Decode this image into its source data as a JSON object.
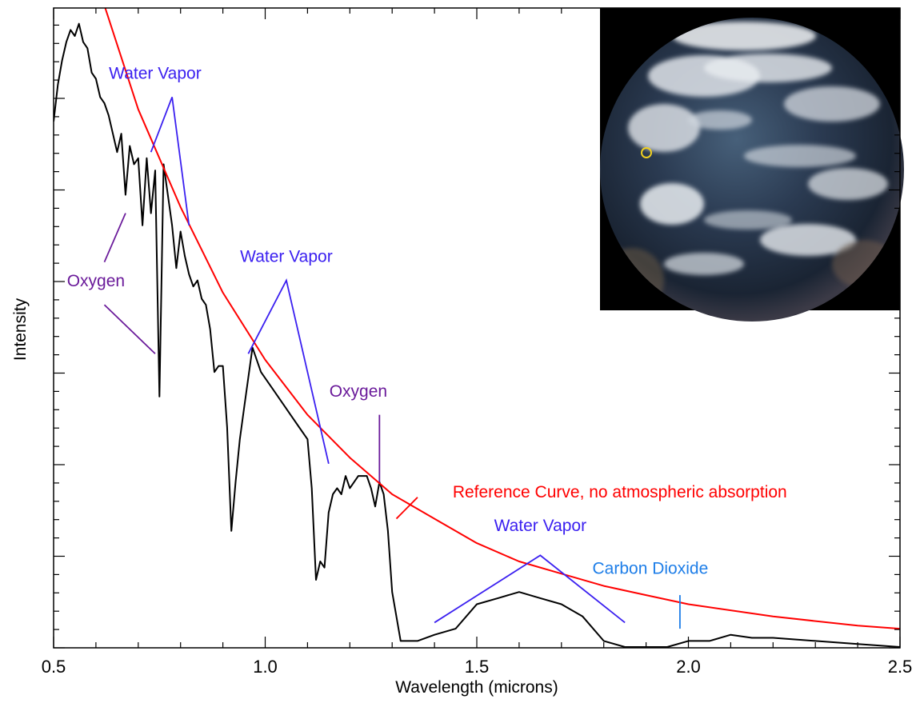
{
  "chart_data": {
    "type": "line",
    "title": "",
    "xlabel": "Wavelength (microns)",
    "ylabel": "Intensity",
    "xlim": [
      0.5,
      2.5
    ],
    "ylim": [
      0,
      1
    ],
    "x_tick_labels": [
      "0.5",
      "1.0",
      "1.5",
      "2.0",
      "2.5"
    ],
    "x_ticks": [
      0.5,
      1.0,
      1.5,
      2.0,
      2.5
    ],
    "y_tick_labels_shown": false,
    "grid": false,
    "colors": {
      "spectrum": "#000000",
      "reference": "#ff0000",
      "water_vapor": "#3a1ff0",
      "oxygen": "#6a1a9a",
      "carbon_dioxide": "#1e7ee8"
    },
    "series": [
      {
        "name": "",
        "color": "#000000",
        "x": [
          0.5,
          0.51,
          0.52,
          0.53,
          0.54,
          0.55,
          0.56,
          0.57,
          0.58,
          0.59,
          0.6,
          0.61,
          0.62,
          0.63,
          0.64,
          0.65,
          0.66,
          0.67,
          0.68,
          0.69,
          0.7,
          0.71,
          0.72,
          0.73,
          0.74,
          0.75,
          0.76,
          0.77,
          0.78,
          0.79,
          0.8,
          0.81,
          0.82,
          0.83,
          0.84,
          0.85,
          0.86,
          0.87,
          0.88,
          0.89,
          0.9,
          0.91,
          0.92,
          0.93,
          0.94,
          0.95,
          0.96,
          0.97,
          0.98,
          0.99,
          1.0,
          1.02,
          1.04,
          1.06,
          1.08,
          1.1,
          1.11,
          1.12,
          1.13,
          1.14,
          1.15,
          1.16,
          1.17,
          1.18,
          1.19,
          1.2,
          1.22,
          1.24,
          1.25,
          1.26,
          1.27,
          1.28,
          1.29,
          1.3,
          1.32,
          1.34,
          1.36,
          1.4,
          1.45,
          1.5,
          1.55,
          1.6,
          1.65,
          1.7,
          1.75,
          1.8,
          1.85,
          1.9,
          1.95,
          2.0,
          2.05,
          2.1,
          2.15,
          2.2,
          2.3,
          2.4,
          2.5
        ],
        "values": [
          0.86,
          0.92,
          0.96,
          0.99,
          1.01,
          1.0,
          1.02,
          0.99,
          0.98,
          0.94,
          0.93,
          0.9,
          0.89,
          0.87,
          0.84,
          0.81,
          0.84,
          0.74,
          0.82,
          0.79,
          0.8,
          0.69,
          0.8,
          0.71,
          0.78,
          0.41,
          0.79,
          0.74,
          0.69,
          0.62,
          0.68,
          0.64,
          0.61,
          0.59,
          0.6,
          0.57,
          0.56,
          0.52,
          0.45,
          0.46,
          0.46,
          0.36,
          0.19,
          0.27,
          0.34,
          0.39,
          0.44,
          0.49,
          0.47,
          0.45,
          0.44,
          0.42,
          0.4,
          0.38,
          0.36,
          0.34,
          0.26,
          0.11,
          0.14,
          0.13,
          0.22,
          0.25,
          0.26,
          0.25,
          0.28,
          0.26,
          0.28,
          0.28,
          0.26,
          0.23,
          0.27,
          0.25,
          0.19,
          0.09,
          0.01,
          0.01,
          0.01,
          0.02,
          0.03,
          0.07,
          0.08,
          0.09,
          0.08,
          0.07,
          0.05,
          0.01,
          0.0,
          0.0,
          0.0,
          0.01,
          0.01,
          0.02,
          0.015,
          0.015,
          0.01,
          0.005,
          0.0
        ]
      },
      {
        "name": "Reference Curve, no atmospheric absorption",
        "color": "#ff0000",
        "x": [
          0.62,
          0.7,
          0.8,
          0.9,
          1.0,
          1.1,
          1.2,
          1.3,
          1.4,
          1.5,
          1.6,
          1.7,
          1.8,
          1.9,
          2.0,
          2.2,
          2.4,
          2.5
        ],
        "values": [
          1.05,
          0.88,
          0.72,
          0.58,
          0.47,
          0.38,
          0.31,
          0.25,
          0.21,
          0.17,
          0.14,
          0.12,
          0.1,
          0.085,
          0.07,
          0.05,
          0.035,
          0.03
        ]
      }
    ],
    "annotations": [
      {
        "text": "Water Vapor",
        "color": "#3a1ff0",
        "label_x": 0.74,
        "label_y": 0.93,
        "targets": [
          [
            0.73,
            0.81
          ],
          [
            0.82,
            0.69
          ]
        ],
        "apex": [
          0.78,
          0.9
        ]
      },
      {
        "text": "Water Vapor",
        "color": "#3a1ff0",
        "label_x": 1.05,
        "label_y": 0.63,
        "targets": [
          [
            0.96,
            0.48
          ],
          [
            1.15,
            0.3
          ]
        ],
        "apex": [
          1.05,
          0.6
        ]
      },
      {
        "text": "Water Vapor",
        "color": "#3a1ff0",
        "label_x": 1.65,
        "label_y": 0.19,
        "targets": [
          [
            1.4,
            0.04
          ],
          [
            1.85,
            0.04
          ]
        ],
        "apex": [
          1.65,
          0.15
        ]
      },
      {
        "text": "Oxygen",
        "color": "#6a1a9a",
        "label_x": 0.6,
        "label_y": 0.59,
        "targets": [
          [
            0.67,
            0.71
          ],
          [
            0.74,
            0.48
          ]
        ]
      },
      {
        "text": "Oxygen",
        "color": "#6a1a9a",
        "label_x": 1.22,
        "label_y": 0.41,
        "targets": [
          [
            1.27,
            0.27
          ]
        ]
      },
      {
        "text": "Carbon Dioxide",
        "color": "#1e7ee8",
        "label_x": 1.91,
        "label_y": 0.12,
        "targets": [
          [
            1.98,
            0.03
          ]
        ]
      },
      {
        "text": "Reference Curve, no atmospheric absorption",
        "color": "#ff0000",
        "label_x": 1.46,
        "label_y": 0.245,
        "targets": [
          [
            1.31,
            0.21
          ]
        ]
      }
    ],
    "legend": "none",
    "inset_image": {
      "description": "Earth disc photograph",
      "placement": "top-right",
      "icon": "earth-globe-image",
      "marker_color": "#f0d020"
    }
  }
}
